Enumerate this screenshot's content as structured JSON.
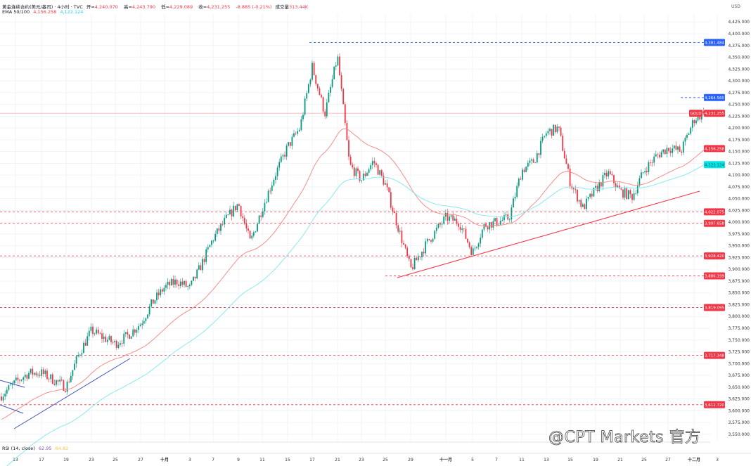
{
  "header": {
    "symbol": "黄金连续合约(美元/盎司) · 4小时 · TVC",
    "open_label": "开=",
    "open": "4,240.070",
    "high_label": "高=",
    "high": "4,243.790",
    "low_label": "低=",
    "low": "4,229.089",
    "close_label": "收=",
    "close": "4,231.255",
    "change": "-8.885 (-0.21%)",
    "volume_label": "成交量",
    "volume": "313.44K"
  },
  "ema": {
    "label": "EMA 50/100",
    "ema50": "4,156.258",
    "ema100": "4,122.124",
    "ema50_color": "#f23645",
    "ema100_color": "#22d3ee"
  },
  "rsi": {
    "label": "RSI (14, close)",
    "v1": "62.95",
    "v2": "64.82"
  },
  "currency": "USD",
  "watermark": "@CPT Markets 官方",
  "colors": {
    "up": "#089981",
    "down": "#f23645",
    "trend_red": "#f23645",
    "trend_blue": "#3f51b5",
    "level_blue": "#2962ff"
  },
  "chart_data": {
    "type": "candlestick",
    "interval": "4小时",
    "x_tick_labels": [
      "13",
      "17",
      "19",
      "23",
      "25",
      "27",
      "十月",
      "3",
      "7",
      "9",
      "11",
      "15",
      "17",
      "21",
      "23",
      "25",
      "29",
      "十一月",
      "5",
      "7",
      "11",
      "13",
      "15",
      "19",
      "21",
      "25",
      "27",
      "十二月",
      "3"
    ],
    "y_tick_labels": [
      "4,425.000",
      "4,400.000",
      "4,375.000",
      "4,350.000",
      "4,325.000",
      "4,300.000",
      "4,275.000",
      "4,250.000",
      "4,225.000",
      "4,200.000",
      "4,175.000",
      "4,150.000",
      "4,125.000",
      "4,100.000",
      "4,075.000",
      "4,050.000",
      "4,025.000",
      "4,000.000",
      "3,975.000",
      "3,950.000",
      "3,925.000",
      "3,900.000",
      "3,875.000",
      "3,850.000",
      "3,825.000",
      "3,800.000",
      "3,775.000",
      "3,750.000",
      "3,725.000",
      "3,700.000",
      "3,675.000",
      "3,650.000",
      "3,625.000",
      "3,600.000",
      "3,575.000",
      "3,550.000"
    ],
    "ylim": [
      3550,
      4425
    ],
    "approx_closes_at_labels_and_midpoints": [
      3660,
      3680,
      3680,
      3665,
      3650,
      3720,
      3770,
      3755,
      3742,
      3760,
      3785,
      3830,
      3862,
      3875,
      3860,
      3910,
      3965,
      4005,
      4040,
      3957,
      4030,
      4100,
      4160,
      4200,
      4330,
      4230,
      4352,
      4121,
      4090,
      4130,
      4080,
      3990,
      3900,
      3960,
      4010,
      4000,
      3935,
      3994,
      4000,
      4009,
      4110,
      4130,
      4190,
      4200,
      4084,
      4030,
      4069,
      4105,
      4065,
      4055,
      4110,
      4140,
      4158,
      4151,
      4218,
      4235
    ],
    "last_price": {
      "label": "GOLD",
      "value": 4231.255,
      "text": "4,231.255"
    },
    "price_levels": [
      {
        "value": 4381.484,
        "text": "4,381.484",
        "color": "#2962ff"
      },
      {
        "value": 4264.56,
        "text": "4,264.560",
        "color": "#2962ff"
      },
      {
        "value": 4022.075,
        "text": "4,022.075",
        "color": "#f23645"
      },
      {
        "value": 3997.658,
        "text": "3,997.658",
        "color": "#f23645"
      },
      {
        "value": 3928.42,
        "text": "3,928.420",
        "color": "#f23645"
      },
      {
        "value": 3886.199,
        "text": "3,886.199",
        "color": "#f23645"
      },
      {
        "value": 3819.095,
        "text": "3,819.095",
        "color": "#f23645"
      },
      {
        "value": 3717.348,
        "text": "3,717.348",
        "color": "#f23645"
      },
      {
        "value": 3612.72,
        "text": "3,612.720",
        "color": "#f23645"
      }
    ],
    "ema_labels": [
      {
        "value": 4156.258,
        "text": "4,156.258",
        "color": "#f23645"
      },
      {
        "value": 4122.124,
        "text": "4,122.124",
        "color": "#22d3ee"
      }
    ]
  }
}
